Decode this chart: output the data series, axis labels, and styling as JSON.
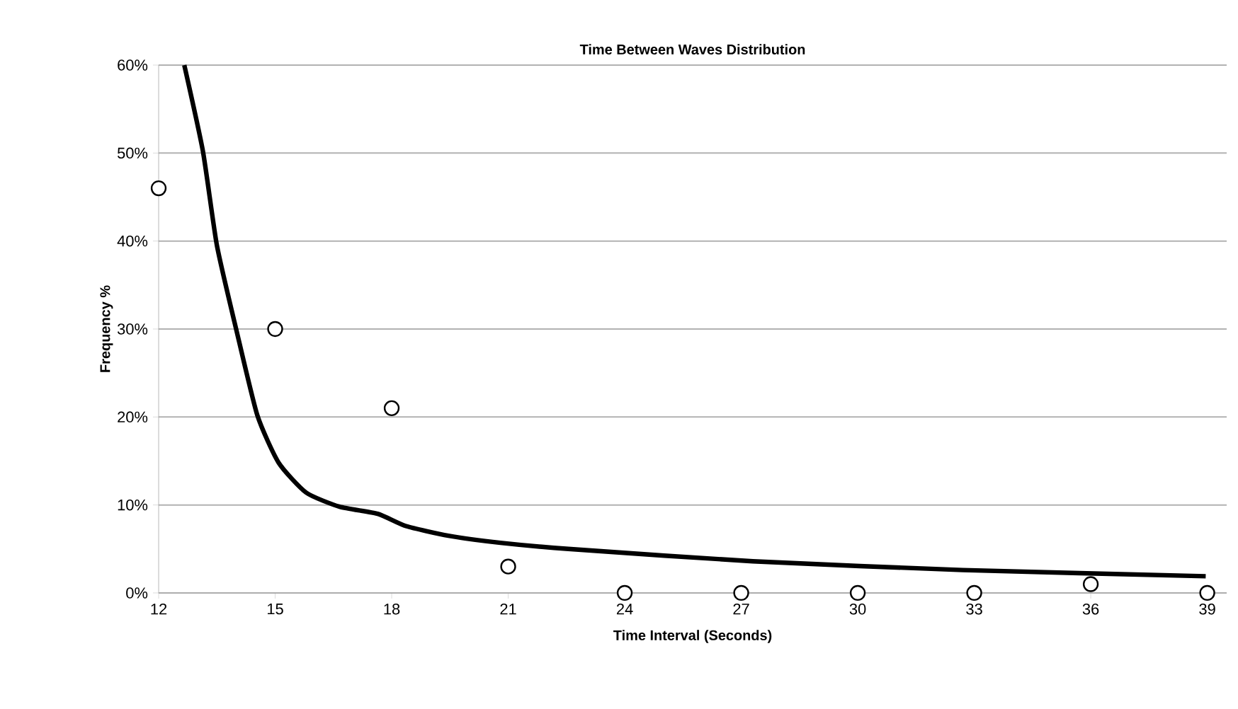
{
  "chart_data": {
    "type": "scatter",
    "title": "Time Between Waves Distribution",
    "xlabel": "Time Interval (Seconds)",
    "ylabel": "Frequency %",
    "series": [
      {
        "color": "#ffffff",
        "marker": "circle",
        "x": [
          12,
          15,
          18,
          21,
          24,
          27,
          30,
          33,
          36,
          39
        ],
        "values": [
          46,
          30,
          21,
          3,
          0,
          0,
          0,
          0,
          1,
          0
        ]
      },
      {
        "type": "line",
        "color": "#000000",
        "marker": "none",
        "line_style": "solid",
        "x": [
          12.66,
          13.14,
          13.5,
          14.0,
          14.54,
          15.09,
          15.8,
          16.66,
          17.64,
          18.37,
          19.46,
          20.8,
          22.55,
          27.3,
          32.7,
          38.96
        ],
        "values": [
          60,
          50.2,
          39.5,
          29.9,
          20.2,
          14.8,
          11.4,
          9.8,
          9.0,
          7.6,
          6.5,
          5.7,
          5.0,
          3.6,
          2.6,
          1.9
        ]
      }
    ],
    "xlim": [
      12,
      39.5
    ],
    "xticks": [
      12,
      15,
      18,
      21,
      24,
      27,
      30,
      33,
      36,
      39
    ],
    "ylim": [
      0,
      60
    ],
    "yticks": [
      {
        "value": 0,
        "label": "0%"
      },
      {
        "value": 10,
        "label": "10%"
      },
      {
        "value": 20,
        "label": "20%"
      },
      {
        "value": 30,
        "label": "30%"
      },
      {
        "value": 40,
        "label": "40%"
      },
      {
        "value": 50,
        "label": "50%"
      },
      {
        "value": 60,
        "label": "60%"
      }
    ],
    "grid": "y"
  }
}
